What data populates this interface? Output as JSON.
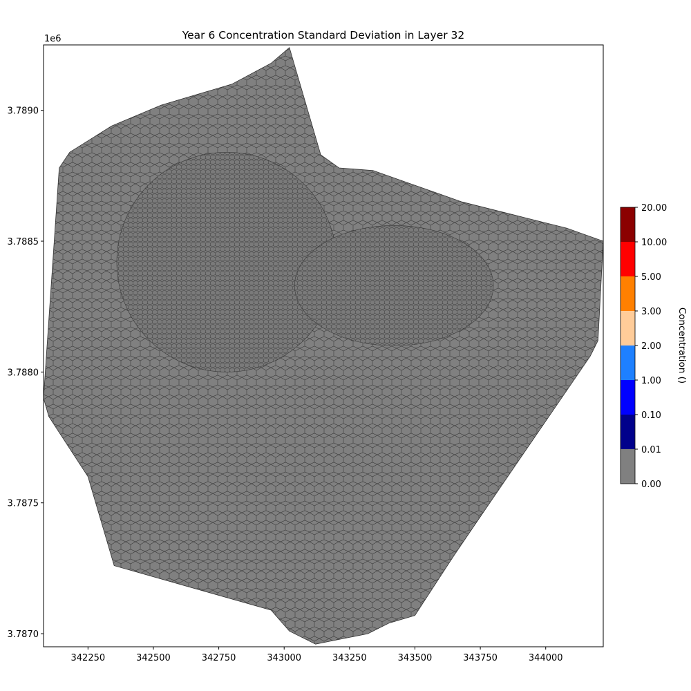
{
  "chart_data": {
    "type": "heatmap",
    "title": "Year 6 Concentration Standard Deviation in Layer 32",
    "xlabel": "",
    "ylabel": "",
    "y_offset_label": "1e6",
    "xlim": [
      342080,
      344220
    ],
    "ylim": [
      3786950,
      3789250
    ],
    "x_ticks": [
      342250,
      342500,
      342750,
      343000,
      343250,
      343500,
      343750,
      344000
    ],
    "y_ticks": [
      3787000,
      3787500,
      3788000,
      3788500,
      3789000
    ],
    "y_tick_labels": [
      "3.7870",
      "3.7875",
      "3.7880",
      "3.7885",
      "3.7890"
    ],
    "grid": false,
    "uniform_value_range": [
      0.0,
      0.01
    ],
    "uniform_fill_color": "#808080",
    "mesh_edge_color": "#333333",
    "domain_outline": [
      [
        342080,
        3787900
      ],
      [
        342090,
        3788050
      ],
      [
        342140,
        3788780
      ],
      [
        342180,
        3788840
      ],
      [
        342340,
        3788940
      ],
      [
        342530,
        3789020
      ],
      [
        342800,
        3789100
      ],
      [
        342950,
        3789180
      ],
      [
        343020,
        3789240
      ],
      [
        343140,
        3788830
      ],
      [
        343210,
        3788780
      ],
      [
        343340,
        3788770
      ],
      [
        343680,
        3788650
      ],
      [
        343880,
        3788600
      ],
      [
        344080,
        3788550
      ],
      [
        344220,
        3788500
      ],
      [
        344200,
        3788120
      ],
      [
        344170,
        3788060
      ],
      [
        343800,
        3787520
      ],
      [
        343650,
        3787300
      ],
      [
        343500,
        3787070
      ],
      [
        343400,
        3787040
      ],
      [
        343320,
        3787000
      ],
      [
        343170,
        3786970
      ],
      [
        343120,
        3786960
      ],
      [
        343020,
        3787010
      ],
      [
        342950,
        3787090
      ],
      [
        342350,
        3787260
      ],
      [
        342250,
        3787600
      ],
      [
        342100,
        3787830
      ]
    ],
    "colorbar": {
      "label": "Concentration ()",
      "boundaries": [
        0.0,
        0.01,
        0.1,
        1.0,
        2.0,
        3.0,
        5.0,
        10.0,
        20.0
      ],
      "tick_labels": [
        "0.00",
        "0.01",
        "0.10",
        "1.00",
        "2.00",
        "3.00",
        "5.00",
        "10.00",
        "20.00"
      ],
      "colors": [
        "#808080",
        "#00008b",
        "#0000ff",
        "#1e80ff",
        "#ffcc99",
        "#ff8000",
        "#ff0000",
        "#8b0000"
      ]
    }
  }
}
